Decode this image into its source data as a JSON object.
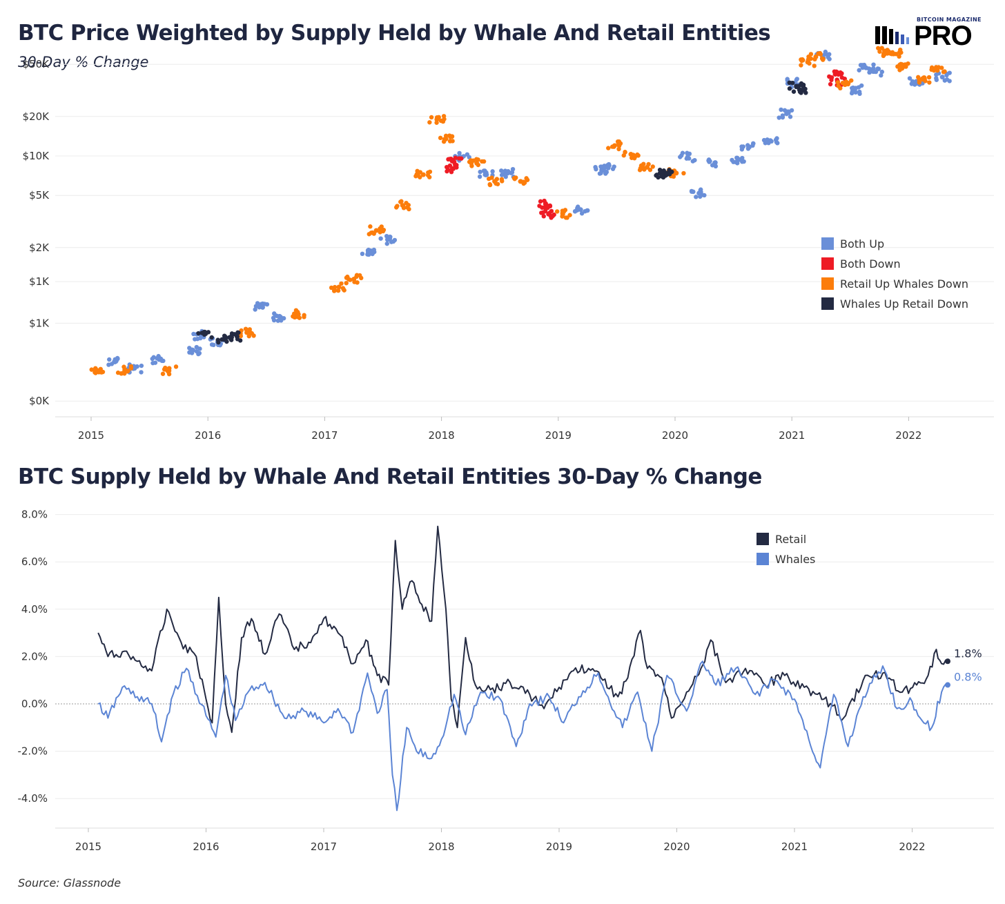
{
  "header": {
    "title": "BTC Price Weighted by Supply Held by Whale And Retail Entities",
    "subtitle": "30-Day % Change",
    "logo_kicker": "BITCOIN MAGAZINE",
    "logo_word": "PRO"
  },
  "footer": {
    "source": "Source: Glassnode"
  },
  "colors": {
    "both_up": "#6a8fd8",
    "both_down": "#ee1c25",
    "retail_up_whales_down": "#fc7d0b",
    "whales_up_retail_down": "#232a42",
    "retail_line": "#232a42",
    "whales_line": "#5b84d4"
  },
  "chart_data": [
    {
      "type": "scatter",
      "title": "BTC Price Weighted by Supply Held by Whale And Retail Entities",
      "subtitle": "30-Day % Change",
      "y_scale": "log",
      "x_ticks": [
        "2015",
        "2016",
        "2017",
        "2018",
        "2019",
        "2020",
        "2021",
        "2022"
      ],
      "y_ticks": [
        "$50K",
        "$20K",
        "$10K",
        "$5K",
        "$2K",
        "$1K",
        "$1K",
        "$0K"
      ],
      "legend_position": "right",
      "legend": [
        "Both Up",
        "Both Down",
        "Retail Up Whales Down",
        "Whales Up Retail Down"
      ],
      "series": [
        {
          "name": "Both Up",
          "points": [
            [
              "2015-03-15",
              270
            ],
            [
              "2015-05-15",
              240
            ],
            [
              "2015-08-01",
              280
            ],
            [
              "2015-11-15",
              330
            ],
            [
              "2015-12-10",
              430
            ],
            [
              "2016-02-01",
              380
            ],
            [
              "2016-06-20",
              700
            ],
            [
              "2016-08-15",
              590
            ],
            [
              "2017-05-15",
              1900
            ],
            [
              "2017-07-15",
              2300
            ],
            [
              "2018-03-05",
              9800
            ],
            [
              "2018-05-20",
              7200
            ],
            [
              "2018-07-25",
              7400
            ],
            [
              "2019-03-10",
              3900
            ],
            [
              "2019-05-15",
              7800
            ],
            [
              "2019-06-05",
              8100
            ],
            [
              "2020-02-10",
              9800
            ],
            [
              "2020-03-15",
              5200
            ],
            [
              "2020-05-05",
              8900
            ],
            [
              "2020-07-15",
              9300
            ],
            [
              "2020-08-20",
              11700
            ],
            [
              "2020-10-25",
              13100
            ],
            [
              "2020-12-15",
              21000
            ],
            [
              "2021-01-10",
              36000
            ],
            [
              "2021-04-05",
              58000
            ],
            [
              "2021-07-15",
              32000
            ],
            [
              "2021-08-20",
              47000
            ],
            [
              "2021-09-20",
              44000
            ],
            [
              "2022-01-25",
              37000
            ],
            [
              "2022-04-15",
              40000
            ]
          ]
        },
        {
          "name": "Both Down",
          "points": [
            [
              "2018-02-05",
              8000
            ],
            [
              "2018-02-10",
              9000
            ],
            [
              "2018-11-22",
              4300
            ],
            [
              "2018-12-01",
              3600
            ],
            [
              "2021-05-15",
              42000
            ],
            [
              "2021-05-22",
              37000
            ]
          ]
        },
        {
          "name": "Retail Up Whales Down",
          "points": [
            [
              "2015-01-25",
              225
            ],
            [
              "2015-04-15",
              235
            ],
            [
              "2015-09-01",
              230
            ],
            [
              "2016-05-01",
              450
            ],
            [
              "2016-10-10",
              620
            ],
            [
              "2017-02-15",
              1000
            ],
            [
              "2017-04-01",
              1150
            ],
            [
              "2017-06-10",
              2700
            ],
            [
              "2017-09-01",
              4200
            ],
            [
              "2017-11-05",
              7200
            ],
            [
              "2017-12-17",
              19000
            ],
            [
              "2018-01-15",
              13500
            ],
            [
              "2018-04-20",
              8800
            ],
            [
              "2018-06-15",
              6400
            ],
            [
              "2018-09-05",
              6400
            ],
            [
              "2019-01-15",
              3600
            ],
            [
              "2019-06-25",
              12000
            ],
            [
              "2019-08-15",
              10300
            ],
            [
              "2019-10-05",
              8200
            ],
            [
              "2020-01-05",
              7400
            ],
            [
              "2021-02-20",
              52000
            ],
            [
              "2021-03-15",
              57000
            ],
            [
              "2021-06-15",
              35000
            ],
            [
              "2021-10-20",
              62000
            ],
            [
              "2021-11-15",
              60000
            ],
            [
              "2021-12-15",
              48000
            ],
            [
              "2022-02-20",
              39000
            ],
            [
              "2022-03-30",
              45000
            ]
          ]
        },
        {
          "name": "Whales Up Retail Down",
          "points": [
            [
              "2015-12-20",
              440
            ],
            [
              "2016-02-20",
              400
            ],
            [
              "2016-04-01",
              420
            ],
            [
              "2019-11-20",
              7300
            ],
            [
              "2019-12-01",
              7100
            ],
            [
              "2021-01-15",
              34000
            ],
            [
              "2021-01-25",
              32000
            ]
          ]
        }
      ]
    },
    {
      "type": "line",
      "title": "BTC Supply Held by Whale And Retail Entities 30-Day % Change",
      "x_ticks": [
        "2015",
        "2016",
        "2017",
        "2018",
        "2019",
        "2020",
        "2021",
        "2022"
      ],
      "y_ticks": [
        "8.0%",
        "6.0%",
        "4.0%",
        "2.0%",
        "0.0%",
        "-2.0%",
        "-4.0%"
      ],
      "ylim": [
        -4.9,
        8.3
      ],
      "legend_position": "top-right",
      "legend": [
        "Retail",
        "Whales"
      ],
      "series": [
        {
          "name": "Retail",
          "end_label": "1.8%",
          "points": [
            [
              "2015-02-01",
              3.0
            ],
            [
              "2015-03-01",
              2.0
            ],
            [
              "2015-04-15",
              2.2
            ],
            [
              "2015-06-01",
              1.8
            ],
            [
              "2015-07-15",
              1.4
            ],
            [
              "2015-09-01",
              4.0
            ],
            [
              "2015-10-15",
              2.6
            ],
            [
              "2015-12-01",
              2.0
            ],
            [
              "2016-01-01",
              0.2
            ],
            [
              "2016-01-20",
              -0.8
            ],
            [
              "2016-02-10",
              4.5
            ],
            [
              "2016-03-01",
              0.0
            ],
            [
              "2016-03-20",
              -1.2
            ],
            [
              "2016-04-20",
              2.8
            ],
            [
              "2016-05-20",
              3.6
            ],
            [
              "2016-07-01",
              2.1
            ],
            [
              "2016-08-15",
              3.8
            ],
            [
              "2016-10-01",
              2.3
            ],
            [
              "2016-11-15",
              2.6
            ],
            [
              "2017-01-01",
              3.6
            ],
            [
              "2017-02-15",
              3.0
            ],
            [
              "2017-04-01",
              1.7
            ],
            [
              "2017-05-10",
              2.7
            ],
            [
              "2017-06-15",
              1.2
            ],
            [
              "2017-07-20",
              0.8
            ],
            [
              "2017-08-10",
              6.9
            ],
            [
              "2017-09-01",
              4.0
            ],
            [
              "2017-10-01",
              5.2
            ],
            [
              "2017-11-01",
              4.2
            ],
            [
              "2017-12-01",
              3.5
            ],
            [
              "2017-12-20",
              7.5
            ],
            [
              "2018-01-15",
              4.0
            ],
            [
              "2018-02-01",
              0.2
            ],
            [
              "2018-02-20",
              -1.0
            ],
            [
              "2018-03-15",
              2.8
            ],
            [
              "2018-04-15",
              0.8
            ],
            [
              "2018-06-01",
              0.6
            ],
            [
              "2018-08-01",
              0.9
            ],
            [
              "2018-10-01",
              0.4
            ],
            [
              "2018-11-15",
              -0.2
            ],
            [
              "2019-01-01",
              0.7
            ],
            [
              "2019-02-15",
              1.4
            ],
            [
              "2019-04-01",
              1.5
            ],
            [
              "2019-05-15",
              1.0
            ],
            [
              "2019-07-01",
              0.3
            ],
            [
              "2019-08-01",
              1.1
            ],
            [
              "2019-09-10",
              3.1
            ],
            [
              "2019-10-01",
              1.5
            ],
            [
              "2019-11-15",
              1.1
            ],
            [
              "2019-12-15",
              -0.6
            ],
            [
              "2020-02-01",
              0.5
            ],
            [
              "2020-03-15",
              1.5
            ],
            [
              "2020-04-15",
              2.7
            ],
            [
              "2020-06-01",
              0.9
            ],
            [
              "2020-08-01",
              1.5
            ],
            [
              "2020-10-01",
              0.8
            ],
            [
              "2020-12-01",
              1.2
            ],
            [
              "2021-02-01",
              0.7
            ],
            [
              "2021-04-01",
              0.2
            ],
            [
              "2021-06-01",
              -0.6
            ],
            [
              "2021-08-01",
              1.0
            ],
            [
              "2021-10-01",
              1.3
            ],
            [
              "2021-12-01",
              0.5
            ],
            [
              "2022-01-15",
              0.8
            ],
            [
              "2022-02-20",
              1.2
            ],
            [
              "2022-03-15",
              2.3
            ],
            [
              "2022-04-01",
              1.7
            ],
            [
              "2022-04-20",
              1.8
            ]
          ]
        },
        {
          "name": "Whales",
          "end_label": "0.8%",
          "points": [
            [
              "2015-02-01",
              0.0
            ],
            [
              "2015-03-01",
              -0.6
            ],
            [
              "2015-04-15",
              0.7
            ],
            [
              "2015-06-01",
              0.3
            ],
            [
              "2015-07-15",
              0.0
            ],
            [
              "2015-08-15",
              -1.6
            ],
            [
              "2015-09-15",
              0.2
            ],
            [
              "2015-11-01",
              1.5
            ],
            [
              "2016-01-01",
              -0.5
            ],
            [
              "2016-02-01",
              -1.4
            ],
            [
              "2016-03-01",
              1.2
            ],
            [
              "2016-04-01",
              -0.7
            ],
            [
              "2016-05-15",
              0.6
            ],
            [
              "2016-07-01",
              0.9
            ],
            [
              "2016-09-01",
              -0.6
            ],
            [
              "2016-11-01",
              -0.3
            ],
            [
              "2017-01-01",
              -0.8
            ],
            [
              "2017-02-15",
              -0.2
            ],
            [
              "2017-04-01",
              -1.2
            ],
            [
              "2017-05-15",
              1.3
            ],
            [
              "2017-06-15",
              -0.4
            ],
            [
              "2017-07-15",
              0.6
            ],
            [
              "2017-08-01",
              -3.0
            ],
            [
              "2017-08-15",
              -4.5
            ],
            [
              "2017-09-15",
              -1.0
            ],
            [
              "2017-10-15",
              -2.0
            ],
            [
              "2017-12-01",
              -2.3
            ],
            [
              "2018-01-01",
              -1.5
            ],
            [
              "2018-02-10",
              0.4
            ],
            [
              "2018-03-15",
              -1.3
            ],
            [
              "2018-05-01",
              0.5
            ],
            [
              "2018-07-01",
              0.2
            ],
            [
              "2018-08-20",
              -1.8
            ],
            [
              "2018-10-01",
              0.0
            ],
            [
              "2018-12-01",
              0.3
            ],
            [
              "2019-01-15",
              -0.8
            ],
            [
              "2019-03-01",
              0.3
            ],
            [
              "2019-05-01",
              1.3
            ],
            [
              "2019-06-01",
              0.3
            ],
            [
              "2019-07-15",
              -1.0
            ],
            [
              "2019-09-01",
              0.5
            ],
            [
              "2019-10-15",
              -2.0
            ],
            [
              "2019-12-01",
              1.2
            ],
            [
              "2020-02-01",
              -0.3
            ],
            [
              "2020-03-20",
              1.8
            ],
            [
              "2020-05-01",
              0.8
            ],
            [
              "2020-07-01",
              1.5
            ],
            [
              "2020-09-01",
              0.4
            ],
            [
              "2020-11-01",
              1.0
            ],
            [
              "2021-01-01",
              0.2
            ],
            [
              "2021-02-15",
              -1.5
            ],
            [
              "2021-03-20",
              -2.7
            ],
            [
              "2021-05-01",
              0.4
            ],
            [
              "2021-06-15",
              -1.8
            ],
            [
              "2021-08-01",
              0.3
            ],
            [
              "2021-10-01",
              1.6
            ],
            [
              "2021-11-15",
              -0.2
            ],
            [
              "2022-01-01",
              0.1
            ],
            [
              "2022-02-01",
              -0.7
            ],
            [
              "2022-03-01",
              -1.0
            ],
            [
              "2022-04-01",
              0.5
            ],
            [
              "2022-04-20",
              0.8
            ]
          ]
        }
      ]
    }
  ]
}
